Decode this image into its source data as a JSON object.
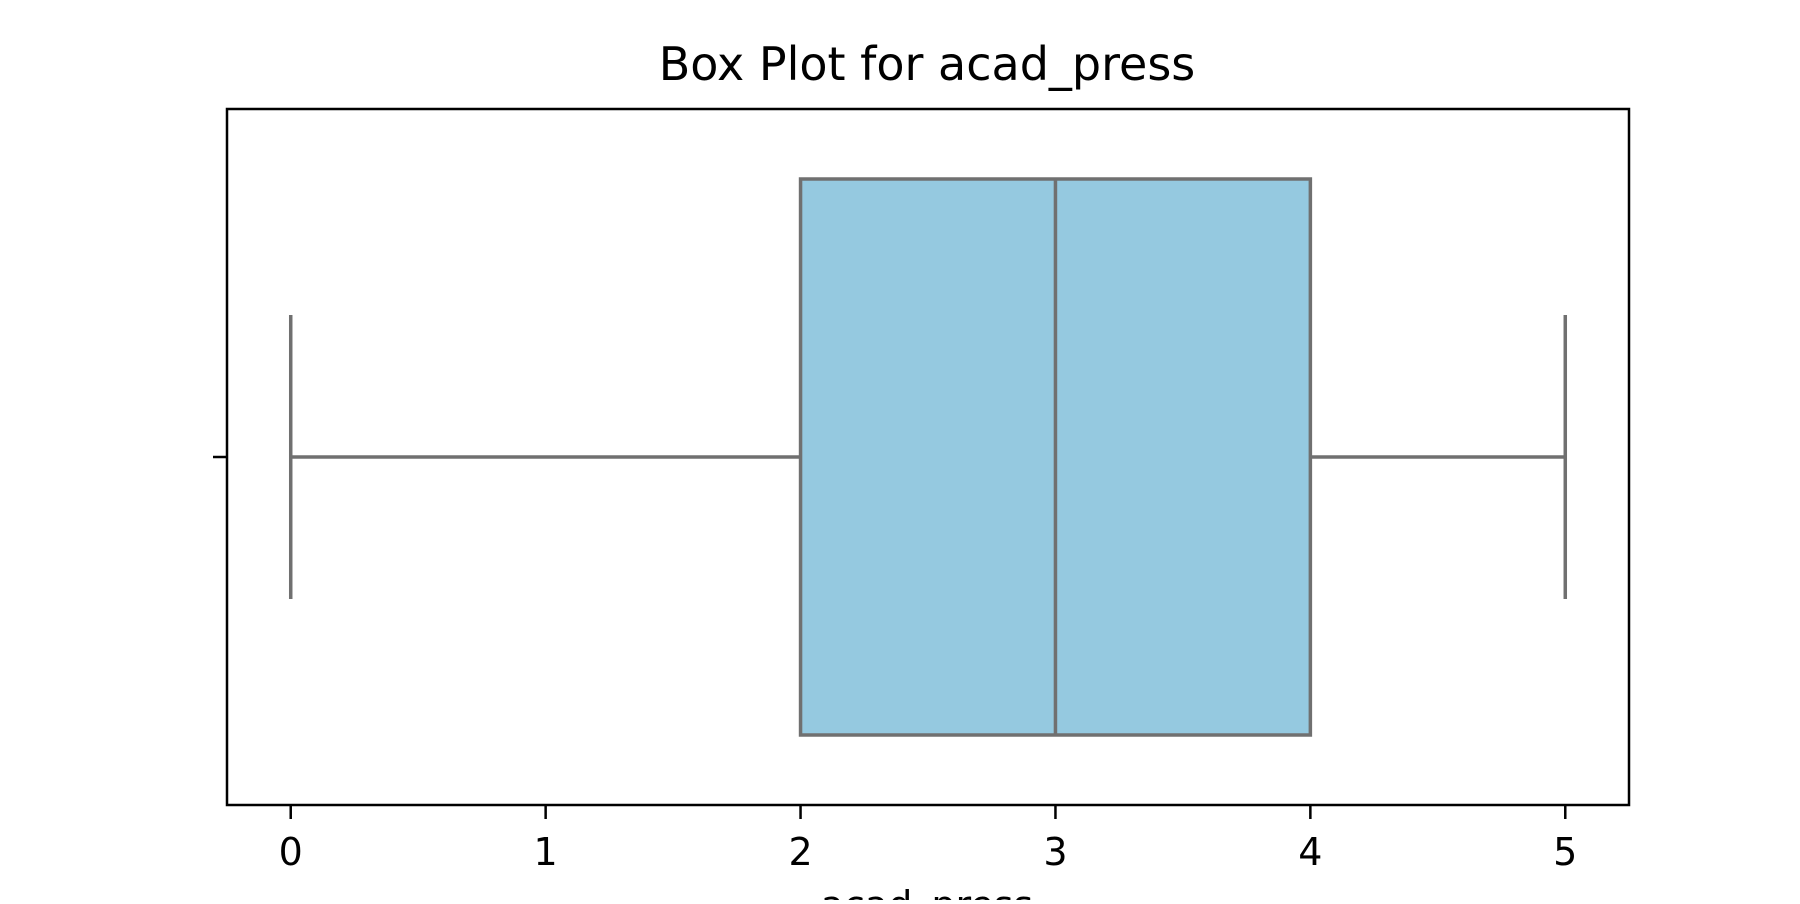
{
  "chart_data": {
    "type": "box",
    "title": "Box Plot for acad_press",
    "xlabel": "acad_press",
    "ylabel": "",
    "orientation": "horizontal",
    "xlim": [
      -0.25,
      5.25
    ],
    "xticks": [
      0,
      1,
      2,
      3,
      4,
      5
    ],
    "xtick_labels": [
      "0",
      "1",
      "2",
      "3",
      "4",
      "5"
    ],
    "grid": false,
    "legend": false,
    "box": {
      "whisker_low": 0,
      "q1": 2,
      "median": 3,
      "q3": 4,
      "whisker_high": 5,
      "outliers": []
    },
    "colors": {
      "box_fill": "#95c9e0",
      "box_line": "#707070",
      "axes": "#000000"
    }
  }
}
